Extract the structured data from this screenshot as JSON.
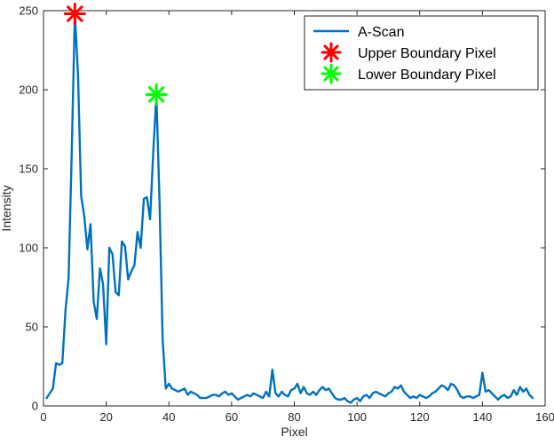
{
  "chart_data": {
    "type": "line",
    "xlabel": "Pixel",
    "ylabel": "Intensity",
    "xlim": [
      0,
      160
    ],
    "ylim": [
      0,
      250
    ],
    "xticks": [
      0,
      20,
      40,
      60,
      80,
      100,
      120,
      140,
      160
    ],
    "yticks": [
      0,
      50,
      100,
      150,
      200,
      250
    ],
    "legend_position": "top-right",
    "grid": false,
    "series": [
      {
        "name": "A-Scan",
        "kind": "line",
        "color": "#0072BD",
        "x": [
          1,
          2,
          3,
          4,
          5,
          6,
          7,
          8,
          9,
          10,
          11,
          12,
          13,
          14,
          15,
          16,
          17,
          18,
          19,
          20,
          21,
          22,
          23,
          24,
          25,
          26,
          27,
          28,
          29,
          30,
          31,
          32,
          33,
          34,
          35,
          36,
          37,
          38,
          39,
          40,
          41,
          42,
          43,
          44,
          45,
          46,
          47,
          48,
          49,
          50,
          51,
          52,
          53,
          54,
          55,
          56,
          57,
          58,
          59,
          60,
          61,
          62,
          63,
          64,
          65,
          66,
          67,
          68,
          69,
          70,
          71,
          72,
          73,
          74,
          75,
          76,
          77,
          78,
          79,
          80,
          81,
          82,
          83,
          84,
          85,
          86,
          87,
          88,
          89,
          90,
          91,
          92,
          93,
          94,
          95,
          96,
          97,
          98,
          99,
          100,
          101,
          102,
          103,
          104,
          105,
          106,
          107,
          108,
          109,
          110,
          111,
          112,
          113,
          114,
          115,
          116,
          117,
          118,
          119,
          120,
          121,
          122,
          123,
          124,
          125,
          126,
          127,
          128,
          129,
          130,
          131,
          132,
          133,
          134,
          135,
          136,
          137,
          138,
          139,
          140,
          141,
          142,
          143,
          144,
          145,
          146,
          147,
          148,
          149,
          150,
          151,
          152,
          153,
          154,
          155,
          156
        ],
        "y": [
          5,
          8,
          11,
          27,
          26,
          27,
          60,
          81,
          160,
          248,
          210,
          133,
          120,
          99,
          115,
          66,
          55,
          87,
          77,
          39,
          100,
          96,
          72,
          70,
          104,
          101,
          80,
          85,
          89,
          110,
          100,
          131,
          132,
          118,
          160,
          197,
          130,
          42,
          11,
          14,
          11,
          10,
          9,
          10,
          11,
          7,
          9,
          8,
          7,
          5,
          5,
          5,
          6,
          7,
          7,
          6,
          8,
          9,
          7,
          8,
          6,
          4,
          5,
          6,
          7,
          6,
          8,
          7,
          6,
          5,
          9,
          6,
          23,
          8,
          6,
          9,
          7,
          6,
          10,
          11,
          14,
          8,
          12,
          8,
          7,
          9,
          7,
          10,
          12,
          10,
          11,
          8,
          5,
          4,
          4,
          5,
          3,
          2,
          4,
          5,
          3,
          6,
          7,
          5,
          8,
          9,
          8,
          7,
          6,
          8,
          9,
          12,
          11,
          13,
          9,
          7,
          5,
          6,
          5,
          7,
          6,
          5,
          6,
          8,
          9,
          11,
          13,
          12,
          10,
          14,
          13,
          10,
          6,
          5,
          6,
          6,
          5,
          6,
          7,
          21,
          9,
          10,
          8,
          6,
          4,
          6,
          7,
          5,
          6,
          10,
          7,
          12,
          9,
          11,
          7,
          5
        ]
      },
      {
        "name": "Upper Boundary Pixel",
        "kind": "marker",
        "color": "#FF0000",
        "x": [
          10
        ],
        "y": [
          248
        ]
      },
      {
        "name": "Lower Boundary Pixel",
        "kind": "marker",
        "color": "#00FF00",
        "x": [
          36
        ],
        "y": [
          197
        ]
      }
    ]
  }
}
